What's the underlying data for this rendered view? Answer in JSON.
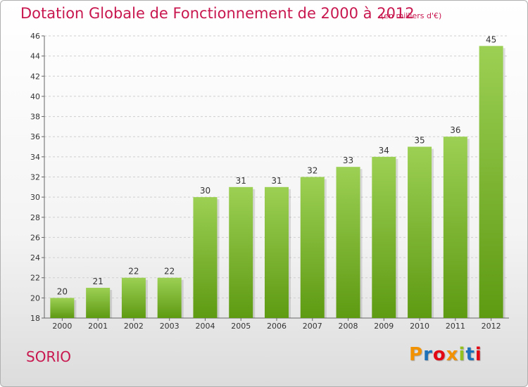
{
  "title": "Dotation Globale de Fonctionnement de 2000 à 2012",
  "subtitle": "(en milliers d'€)",
  "place": "SORIO",
  "logo": {
    "text": "Proxiti",
    "colors": [
      "#f39200",
      "#1d71b8",
      "#e30613",
      "#f39200",
      "#95c11f",
      "#1d71b8",
      "#e30613"
    ]
  },
  "colors": {
    "title": "#c8174f",
    "bar_top": "#9cd054",
    "bar_bottom": "#5e9a12",
    "grid": "#cfcfcf"
  },
  "chart_data": {
    "type": "bar",
    "categories": [
      "2000",
      "2001",
      "2002",
      "2003",
      "2004",
      "2005",
      "2006",
      "2007",
      "2008",
      "2009",
      "2010",
      "2011",
      "2012"
    ],
    "values": [
      20,
      21,
      22,
      22,
      30,
      31,
      31,
      32,
      33,
      34,
      35,
      36,
      45
    ],
    "ylim": [
      18,
      46
    ],
    "yticks": [
      18,
      20,
      22,
      24,
      26,
      28,
      30,
      32,
      34,
      36,
      38,
      40,
      42,
      44,
      46
    ],
    "grid": true,
    "xlabel": "",
    "ylabel": ""
  }
}
